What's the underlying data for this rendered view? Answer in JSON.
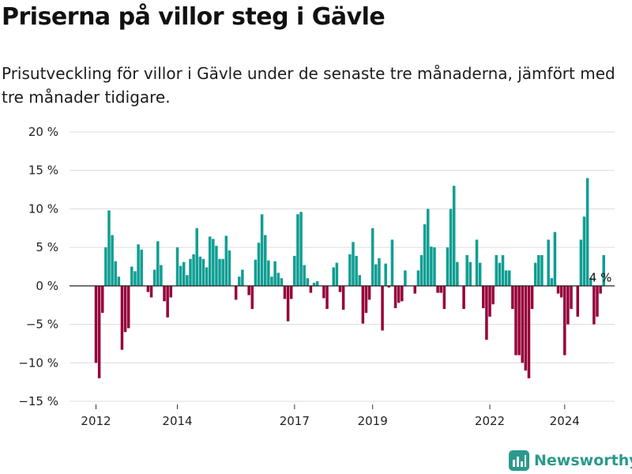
{
  "chart_data": {
    "type": "bar",
    "title": "Priserna på villor steg i Gävle",
    "subtitle": "Prisutveckling för villor i Gävle under de senaste tre månaderna, jämfört med tre månader tidigare.",
    "ylim": [
      -15,
      20
    ],
    "yticks": [
      -15,
      -10,
      -5,
      0,
      5,
      10,
      15,
      20
    ],
    "ytick_labels": [
      "−15 %",
      "−10 %",
      "−5 %",
      "0 %",
      "5 %",
      "10 %",
      "15 %",
      "20 %"
    ],
    "xticks": [
      {
        "label": "2012",
        "index": 0
      },
      {
        "label": "2014",
        "index": 25
      },
      {
        "label": "2017",
        "index": 61
      },
      {
        "label": "2019",
        "index": 85
      },
      {
        "label": "2022",
        "index": 121
      },
      {
        "label": "2024",
        "index": 144
      }
    ],
    "annotation": {
      "text": "4 %",
      "index": 155
    },
    "positive_color": "#0f9e93",
    "negative_color": "#96003a",
    "values": [
      -10,
      -12,
      -3.5,
      5,
      9.8,
      6.6,
      3.2,
      1.2,
      -8.3,
      -6,
      -5.5,
      2.5,
      1.9,
      5.4,
      4.7,
      0,
      -0.8,
      -1.5,
      2.1,
      5.8,
      2.7,
      -2,
      -4.1,
      -1.5,
      0,
      5,
      2.6,
      3.1,
      1.4,
      3.5,
      4.1,
      7.5,
      3.8,
      3.5,
      2.4,
      6.4,
      6.1,
      5.2,
      3.5,
      3.5,
      6.5,
      4.6,
      0,
      -1.8,
      1.2,
      2.1,
      0,
      -1.2,
      -3,
      3.4,
      5.6,
      9.3,
      6.6,
      3.3,
      1.2,
      3.2,
      1.7,
      1,
      -1.7,
      -4.6,
      -1.7,
      3.9,
      9.3,
      9.6,
      2.7,
      1,
      -0.9,
      0.4,
      0.6,
      0,
      -1.6,
      -3,
      0,
      2.4,
      3,
      -0.8,
      -3.1,
      0,
      4.1,
      5.7,
      3.9,
      1.4,
      -4.9,
      -3.5,
      -1.8,
      7.5,
      2.8,
      3.6,
      -5.8,
      2.9,
      -0.2,
      6,
      -2.9,
      -2.2,
      -2,
      2,
      0,
      0,
      -1,
      2,
      4,
      8,
      10,
      5.1,
      5,
      -0.9,
      -0.9,
      -3,
      5,
      10,
      13,
      3.1,
      0,
      -3,
      4,
      3.1,
      0,
      6,
      3,
      -2.9,
      -7,
      -4,
      -2.4,
      4,
      3,
      4,
      2,
      2,
      -3,
      -9,
      -9,
      -10,
      -11,
      -12,
      -3,
      3,
      4,
      4,
      0,
      6,
      1,
      7,
      -1,
      -1.5,
      -9,
      -5,
      -3,
      0,
      -4,
      6,
      9,
      14,
      1,
      -5,
      -4,
      -1,
      4
    ]
  },
  "logo": {
    "text": "Newsworthy",
    "icon": "bar-chart-icon"
  }
}
